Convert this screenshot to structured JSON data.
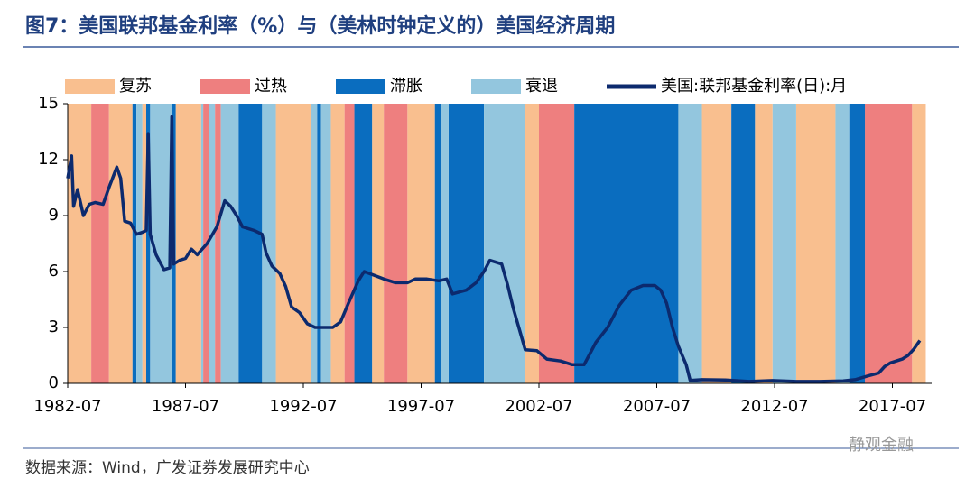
{
  "chart_data": {
    "type": "line",
    "title": "图7：美国联邦基金利率（%）与（美林时钟定义的）美国经济周期",
    "source": "数据来源：Wind，广发证券发展研究中心",
    "watermark": "静观金融",
    "xlim": [
      "1982-07",
      "2019-03"
    ],
    "xticks": [
      "1982-07",
      "1987-07",
      "1992-07",
      "1997-07",
      "2002-07",
      "2007-07",
      "2012-07",
      "2017-07"
    ],
    "ylim": [
      0,
      15
    ],
    "yticks": [
      0,
      3,
      6,
      9,
      12,
      15
    ],
    "phases": [
      {
        "name": "复苏",
        "color": "#F9BF8F",
        "periods": [
          [
            "1982-07",
            "1983-07"
          ],
          [
            "1984-04",
            "1985-04"
          ],
          [
            "1985-09",
            "1985-11"
          ],
          [
            "1987-02",
            "1988-03"
          ],
          [
            "1991-05",
            "1992-11"
          ],
          [
            "1993-09",
            "1994-04"
          ],
          [
            "1995-06",
            "1995-12"
          ],
          [
            "1996-12",
            "1998-02"
          ],
          [
            "2001-12",
            "2002-07"
          ],
          [
            "2009-06",
            "2010-09"
          ],
          [
            "2011-09",
            "2012-06"
          ],
          [
            "2013-06",
            "2015-02"
          ],
          [
            "2018-05",
            "2018-12"
          ]
        ]
      },
      {
        "name": "过热",
        "color": "#EE7F7F",
        "periods": [
          [
            "1983-07",
            "1984-04"
          ],
          [
            "1988-04",
            "1988-07"
          ],
          [
            "1988-10",
            "1989-01"
          ],
          [
            "1994-04",
            "1994-09"
          ],
          [
            "1995-12",
            "1996-12"
          ],
          [
            "2002-07",
            "2004-01"
          ],
          [
            "2016-05",
            "2018-05"
          ]
        ]
      },
      {
        "name": "滞胀",
        "color": "#0A6DBF",
        "periods": [
          [
            "1985-04",
            "1985-06"
          ],
          [
            "1985-11",
            "1986-01"
          ],
          [
            "1986-12",
            "1987-02"
          ],
          [
            "1989-10",
            "1990-10"
          ],
          [
            "1993-02",
            "1993-04"
          ],
          [
            "1994-09",
            "1995-06"
          ],
          [
            "1998-02",
            "1998-05"
          ],
          [
            "1998-09",
            "2000-03"
          ],
          [
            "2004-01",
            "2008-06"
          ],
          [
            "2010-09",
            "2011-09"
          ],
          [
            "2015-09",
            "2016-05"
          ]
        ]
      },
      {
        "name": "衰退",
        "color": "#93C6DE",
        "periods": [
          [
            "1985-06",
            "1985-09"
          ],
          [
            "1986-01",
            "1986-12"
          ],
          [
            "1988-03",
            "1988-04"
          ],
          [
            "1988-07",
            "1988-10"
          ],
          [
            "1989-01",
            "1989-10"
          ],
          [
            "1990-10",
            "1991-05"
          ],
          [
            "1992-11",
            "1993-02"
          ],
          [
            "1993-04",
            "1993-09"
          ],
          [
            "1998-05",
            "1998-09"
          ],
          [
            "2000-03",
            "2001-12"
          ],
          [
            "2008-06",
            "2009-06"
          ],
          [
            "2012-06",
            "2013-06"
          ],
          [
            "2015-02",
            "2015-09"
          ]
        ]
      }
    ],
    "series": [
      {
        "name": "美国:联邦基金利率(日):月",
        "color": "#0C2A6E",
        "x": [
          "1982-07",
          "1982-09",
          "1982-10",
          "1982-12",
          "1983-03",
          "1983-06",
          "1983-09",
          "1984-01",
          "1984-04",
          "1984-08",
          "1984-10",
          "1984-12",
          "1985-03",
          "1985-06",
          "1985-09",
          "1985-11",
          "1985-12",
          "1986-01",
          "1986-04",
          "1986-08",
          "1986-11",
          "1986-12",
          "1987-01",
          "1987-04",
          "1987-07",
          "1987-10",
          "1988-01",
          "1988-06",
          "1988-11",
          "1989-03",
          "1989-06",
          "1989-09",
          "1989-12",
          "1990-06",
          "1990-10",
          "1990-12",
          "1991-03",
          "1991-07",
          "1991-10",
          "1992-01",
          "1992-05",
          "1992-09",
          "1993-01",
          "1993-06",
          "1993-10",
          "1994-02",
          "1994-06",
          "1994-11",
          "1995-02",
          "1995-07",
          "1995-12",
          "1996-06",
          "1996-12",
          "1997-04",
          "1997-10",
          "1998-04",
          "1998-08",
          "1998-11",
          "1999-06",
          "1999-11",
          "2000-03",
          "2000-06",
          "2000-12",
          "2001-03",
          "2001-06",
          "2001-09",
          "2001-12",
          "2002-06",
          "2002-11",
          "2003-06",
          "2003-12",
          "2004-06",
          "2004-12",
          "2005-06",
          "2005-12",
          "2006-06",
          "2006-12",
          "2007-06",
          "2007-09",
          "2007-12",
          "2008-03",
          "2008-06",
          "2008-10",
          "2008-12",
          "2009-06",
          "2010-06",
          "2011-06",
          "2012-06",
          "2013-06",
          "2014-06",
          "2015-06",
          "2015-12",
          "2016-06",
          "2016-12",
          "2017-03",
          "2017-06",
          "2017-12",
          "2018-03",
          "2018-06",
          "2018-09"
        ],
        "values": [
          11.0,
          12.2,
          9.5,
          10.4,
          9.0,
          9.6,
          9.7,
          9.6,
          10.5,
          11.6,
          11.0,
          8.7,
          8.6,
          8.0,
          8.1,
          8.2,
          13.4,
          8.0,
          6.9,
          6.1,
          6.2,
          14.3,
          6.4,
          6.6,
          6.7,
          7.2,
          6.9,
          7.5,
          8.4,
          9.8,
          9.5,
          9.0,
          8.4,
          8.2,
          8.0,
          7.0,
          6.3,
          5.9,
          5.2,
          4.1,
          3.8,
          3.2,
          3.0,
          3.0,
          3.0,
          3.3,
          4.3,
          5.5,
          6.0,
          5.8,
          5.6,
          5.4,
          5.4,
          5.6,
          5.6,
          5.5,
          5.6,
          4.8,
          5.0,
          5.4,
          6.0,
          6.6,
          6.4,
          5.3,
          4.0,
          2.9,
          1.8,
          1.75,
          1.3,
          1.2,
          1.0,
          1.0,
          2.2,
          3.0,
          4.2,
          5.0,
          5.25,
          5.25,
          5.0,
          4.3,
          3.0,
          2.0,
          1.0,
          0.16,
          0.2,
          0.18,
          0.1,
          0.15,
          0.1,
          0.1,
          0.13,
          0.2,
          0.38,
          0.55,
          0.9,
          1.1,
          1.3,
          1.5,
          1.85,
          2.3
        ]
      }
    ]
  }
}
